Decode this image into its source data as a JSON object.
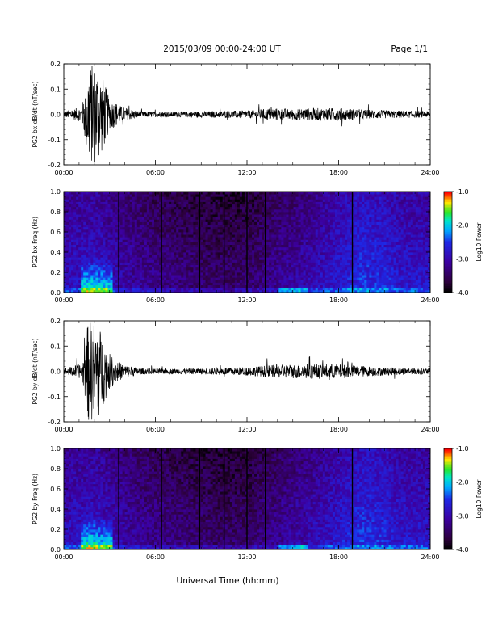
{
  "header": {
    "date_range": "2015/03/09  00:00-24:00 UT",
    "page": "Page 1/1"
  },
  "footer": {
    "xlabel": "Universal Time (hh:mm)"
  },
  "colors": {
    "trace": "#000000",
    "spectrogram_low": "#1a0030",
    "spectrogram_mid": "#1e2ee6",
    "spectrogram_high": "#ff0000"
  },
  "chart_data": [
    {
      "type": "line",
      "ylabel": "PG2 bx dB/dt (nT/sec)",
      "xlim": [
        "00:00",
        "24:00"
      ],
      "x_ticks": [
        "00:00",
        "06:00",
        "12:00",
        "18:00",
        "24:00"
      ],
      "ylim": [
        -0.2,
        0.2
      ],
      "y_ticks": [
        "0.2",
        "0.1",
        "0.0",
        "-0.1",
        "-0.2"
      ],
      "envelope": {
        "x_hours": [
          0,
          1.2,
          1.6,
          1.9,
          2.2,
          2.6,
          3.0,
          3.4,
          3.8,
          5,
          7,
          9,
          11,
          12.5,
          13.5,
          15,
          16.5,
          18,
          19.5,
          21,
          22.5,
          24
        ],
        "amplitude": [
          0.012,
          0.03,
          0.2,
          0.2,
          0.2,
          0.14,
          0.06,
          0.05,
          0.03,
          0.012,
          0.01,
          0.012,
          0.014,
          0.016,
          0.025,
          0.022,
          0.025,
          0.025,
          0.02,
          0.016,
          0.014,
          0.012
        ]
      }
    },
    {
      "type": "heatmap",
      "ylabel": "PG2 bx Freq (Hz)",
      "xlim": [
        "00:00",
        "24:00"
      ],
      "x_ticks": [
        "00:00",
        "06:00",
        "12:00",
        "18:00",
        "24:00"
      ],
      "ylim": [
        0.0,
        1.0
      ],
      "y_ticks": [
        "1.0",
        "0.8",
        "0.6",
        "0.4",
        "0.2",
        "0.0"
      ],
      "colorbar": {
        "label": "Log10 Power",
        "range": [
          -4.0,
          -1.0
        ],
        "ticks": [
          "-1.0",
          "-2.0",
          "-3.0",
          "-4.0"
        ]
      },
      "gap_lines_hours": [
        3.6,
        6.4,
        8.9,
        10.5,
        12.0,
        13.2,
        18.9
      ],
      "activity": {
        "x_hours": [
          0,
          2,
          4,
          6,
          8,
          10,
          12,
          14,
          16,
          18,
          19.5,
          21,
          22,
          24
        ],
        "level": [
          0.5,
          0.55,
          0.35,
          0.2,
          0.12,
          0.05,
          0.05,
          0.25,
          0.4,
          0.6,
          0.75,
          0.7,
          0.6,
          0.55
        ]
      }
    },
    {
      "type": "line",
      "ylabel": "PG2 by dB/dt (nT/sec)",
      "xlim": [
        "00:00",
        "24:00"
      ],
      "x_ticks": [
        "00:00",
        "06:00",
        "12:00",
        "18:00",
        "24:00"
      ],
      "ylim": [
        -0.2,
        0.2
      ],
      "y_ticks": [
        "0.2",
        "0.1",
        "0.0",
        "-0.1",
        "-0.2"
      ],
      "envelope": {
        "x_hours": [
          0,
          1.2,
          1.6,
          1.9,
          2.2,
          2.6,
          3.0,
          3.4,
          3.8,
          5,
          7,
          9,
          11,
          12.5,
          13.5,
          15,
          16.5,
          18,
          19.5,
          21,
          22.5,
          24
        ],
        "amplitude": [
          0.012,
          0.03,
          0.2,
          0.2,
          0.2,
          0.13,
          0.07,
          0.05,
          0.03,
          0.012,
          0.01,
          0.012,
          0.015,
          0.018,
          0.025,
          0.028,
          0.03,
          0.028,
          0.022,
          0.016,
          0.013,
          0.012
        ]
      }
    },
    {
      "type": "heatmap",
      "ylabel": "PG2 by Freq (Hz)",
      "xlim": [
        "00:00",
        "24:00"
      ],
      "x_ticks": [
        "00:00",
        "06:00",
        "12:00",
        "18:00",
        "24:00"
      ],
      "ylim": [
        0.0,
        1.0
      ],
      "y_ticks": [
        "1.0",
        "0.8",
        "0.6",
        "0.4",
        "0.2",
        "0.0"
      ],
      "colorbar": {
        "label": "Log10 Power",
        "range": [
          -4.0,
          -1.0
        ],
        "ticks": [
          "-1.0",
          "-2.0",
          "-3.0",
          "-4.0"
        ]
      },
      "gap_lines_hours": [
        3.6,
        6.4,
        8.9,
        10.5,
        12.0,
        13.2,
        18.9
      ],
      "activity": {
        "x_hours": [
          0,
          2,
          4,
          6,
          8,
          10,
          12,
          14,
          16,
          18,
          19.5,
          21,
          22,
          24
        ],
        "level": [
          0.5,
          0.55,
          0.35,
          0.2,
          0.12,
          0.05,
          0.05,
          0.25,
          0.4,
          0.6,
          0.75,
          0.7,
          0.6,
          0.55
        ]
      }
    }
  ]
}
